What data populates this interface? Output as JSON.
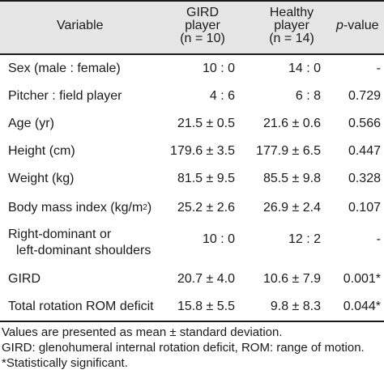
{
  "header": {
    "variable": "Variable",
    "gird_line1": "GIRD",
    "gird_line2": "player",
    "gird_line3": "(n = 10)",
    "healthy_line1": "Healthy",
    "healthy_line2": "player",
    "healthy_line3": "(n = 14)",
    "p_italic": "p",
    "p_rest": "-value"
  },
  "rows": [
    {
      "variable": "Sex (male : female)",
      "gird": "10 : 0",
      "healthy": "14 : 0",
      "p": "-"
    },
    {
      "variable": "Pitcher : field player",
      "gird": "4 : 6",
      "healthy": "6 : 8",
      "p": "0.729"
    },
    {
      "variable": "Age (yr)",
      "gird": "21.5 ± 0.5",
      "healthy": "21.6 ± 0.6",
      "p": "0.566"
    },
    {
      "variable": "Height (cm)",
      "gird": "179.6 ± 3.5",
      "healthy": "177.9 ± 6.5",
      "p": "0.447"
    },
    {
      "variable": "Weight (kg)",
      "gird": "81.5 ± 9.5",
      "healthy": "85.5 ± 9.8",
      "p": "0.328"
    },
    {
      "variable": "Body mass index (kg/m",
      "variable_sup": "2",
      "variable_end": ")",
      "gird": "25.2 ± 2.6",
      "healthy": "26.9 ± 2.4",
      "p": "0.107"
    },
    {
      "variable_line1": "Right-dominant or",
      "variable_line2": "left-dominant shoulders",
      "gird": "10 : 0",
      "healthy": "12 : 2",
      "p": "-"
    },
    {
      "variable": "GIRD",
      "gird": "20.7 ± 4.0",
      "healthy": "10.6 ± 7.9",
      "p": "0.001*"
    },
    {
      "variable": "Total rotation ROM deficit",
      "gird": "15.8 ± 5.5",
      "healthy": "9.8 ± 8.3",
      "p": "0.044*"
    }
  ],
  "footnotes": [
    "Values are presented as mean ± standard deviation.",
    "GIRD: glenohumeral internal rotation deficit, ROM: range of motion.",
    "*Statistically significant."
  ]
}
